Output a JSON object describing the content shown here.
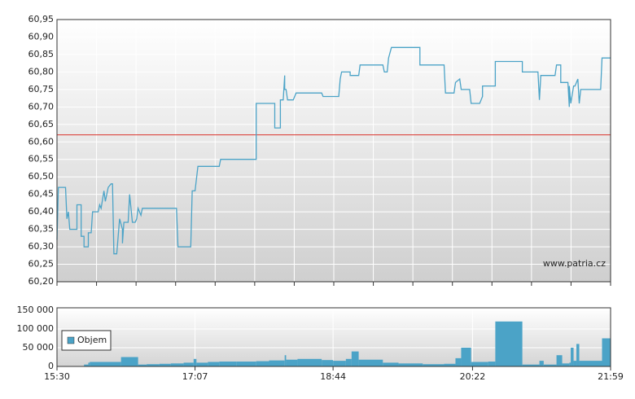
{
  "chart_data": [
    {
      "type": "line",
      "series": [
        {
          "color": "#4ba3c7",
          "x": [
            0,
            1,
            6,
            7,
            8,
            9,
            14,
            14,
            17,
            17,
            19,
            19,
            22,
            22,
            24,
            25,
            29,
            30,
            31,
            33,
            34,
            36,
            38,
            39,
            40,
            42,
            44,
            46,
            46,
            47,
            50,
            51,
            53,
            55,
            56,
            57,
            59,
            60,
            84,
            85,
            94,
            95,
            97,
            99,
            114,
            115,
            140,
            140,
            153,
            153,
            157,
            157,
            159,
            160,
            160,
            161,
            162,
            166,
            168,
            186,
            187,
            198,
            199,
            200,
            206,
            206,
            212,
            213,
            229,
            230,
            232,
            233,
            235,
            255,
            255,
            272,
            273,
            279,
            280,
            283,
            284,
            290,
            291,
            297,
            299,
            299,
            308,
            308,
            327,
            327,
            338,
            339,
            340,
            350,
            351,
            354,
            354,
            359,
            360,
            360,
            361,
            363,
            364,
            366,
            367,
            368,
            382,
            383,
            389
          ],
          "values": [
            60.32,
            60.47,
            60.47,
            60.38,
            60.4,
            60.35,
            60.35,
            60.42,
            60.42,
            60.33,
            60.33,
            60.3,
            60.3,
            60.34,
            60.34,
            60.4,
            60.4,
            60.42,
            60.41,
            60.46,
            60.43,
            60.47,
            60.48,
            60.48,
            60.28,
            60.28,
            60.38,
            60.35,
            60.31,
            60.37,
            60.37,
            60.45,
            60.37,
            60.37,
            60.38,
            60.41,
            60.39,
            60.41,
            60.41,
            60.3,
            60.3,
            60.46,
            60.46,
            60.53,
            60.53,
            60.55,
            60.55,
            60.71,
            60.71,
            60.64,
            60.64,
            60.72,
            60.72,
            60.79,
            60.75,
            60.75,
            60.72,
            60.72,
            60.74,
            60.74,
            60.73,
            60.73,
            60.78,
            60.8,
            60.8,
            60.79,
            60.79,
            60.82,
            60.82,
            60.8,
            60.8,
            60.84,
            60.87,
            60.87,
            60.82,
            60.82,
            60.74,
            60.74,
            60.77,
            60.78,
            60.75,
            60.75,
            60.71,
            60.71,
            60.73,
            60.76,
            60.76,
            60.83,
            60.83,
            60.8,
            60.8,
            60.72,
            60.79,
            60.79,
            60.82,
            60.82,
            60.77,
            60.77,
            60.7,
            60.76,
            60.71,
            60.76,
            60.76,
            60.78,
            60.71,
            60.75,
            60.75,
            60.84,
            60.84
          ]
        }
      ],
      "reference_line": 60.62,
      "reference_color": "#d9322b",
      "xlim": [
        0,
        389
      ],
      "ylim": [
        60.2,
        60.95
      ],
      "yticks": [
        {
          "value": 60.2,
          "label": "60,20"
        },
        {
          "value": 60.25,
          "label": "60,25"
        },
        {
          "value": 60.3,
          "label": "60,30"
        },
        {
          "value": 60.35,
          "label": "60,35"
        },
        {
          "value": 60.4,
          "label": "60,40"
        },
        {
          "value": 60.45,
          "label": "60,45"
        },
        {
          "value": 60.5,
          "label": "60,50"
        },
        {
          "value": 60.55,
          "label": "60,55"
        },
        {
          "value": 60.6,
          "label": "60,60"
        },
        {
          "value": 60.65,
          "label": "60,65"
        },
        {
          "value": 60.7,
          "label": "60,70"
        },
        {
          "value": 60.75,
          "label": "60,75"
        },
        {
          "value": 60.8,
          "label": "60,80"
        },
        {
          "value": 60.85,
          "label": "60,85"
        },
        {
          "value": 60.9,
          "label": "60,90"
        },
        {
          "value": 60.95,
          "label": "60,95"
        }
      ],
      "watermark": "www.patria.cz",
      "grid": true
    },
    {
      "type": "bar",
      "series": [
        {
          "name": "Objem",
          "color": "#4ba3c7",
          "x": [
            19,
            22,
            23,
            45,
            57,
            63,
            72,
            80,
            89,
            96,
            98,
            106,
            114,
            126,
            140,
            149,
            160,
            161,
            169,
            186,
            194,
            203,
            207,
            212,
            229,
            240,
            257,
            272,
            280,
            284,
            291,
            303,
            308,
            327,
            339,
            342,
            351,
            355,
            360,
            361,
            363,
            365,
            367,
            383
          ],
          "values": [
            5000,
            10000,
            12000,
            25000,
            5000,
            6000,
            7000,
            8000,
            10000,
            20000,
            10000,
            12000,
            13000,
            13000,
            14000,
            16000,
            30000,
            18000,
            20000,
            17000,
            15000,
            20000,
            40000,
            18000,
            10000,
            8000,
            6000,
            7000,
            22000,
            50000,
            12000,
            13000,
            120000,
            5000,
            15000,
            5000,
            30000,
            8000,
            10000,
            50000,
            15000,
            60000,
            15000,
            75000
          ]
        }
      ],
      "xlim": [
        0,
        389
      ],
      "xticks": [
        {
          "value": 0,
          "label": "15:30"
        },
        {
          "value": 97,
          "label": "17:07"
        },
        {
          "value": 194,
          "label": "18:44"
        },
        {
          "value": 292,
          "label": "20:22"
        },
        {
          "value": 389,
          "label": "21:59"
        }
      ],
      "ylim": [
        0,
        150000
      ],
      "yticks": [
        {
          "value": 0,
          "label": "0"
        },
        {
          "value": 50000,
          "label": "50 000"
        },
        {
          "value": 100000,
          "label": "100 000"
        },
        {
          "value": 150000,
          "label": "150 000"
        }
      ],
      "grid": true
    }
  ]
}
